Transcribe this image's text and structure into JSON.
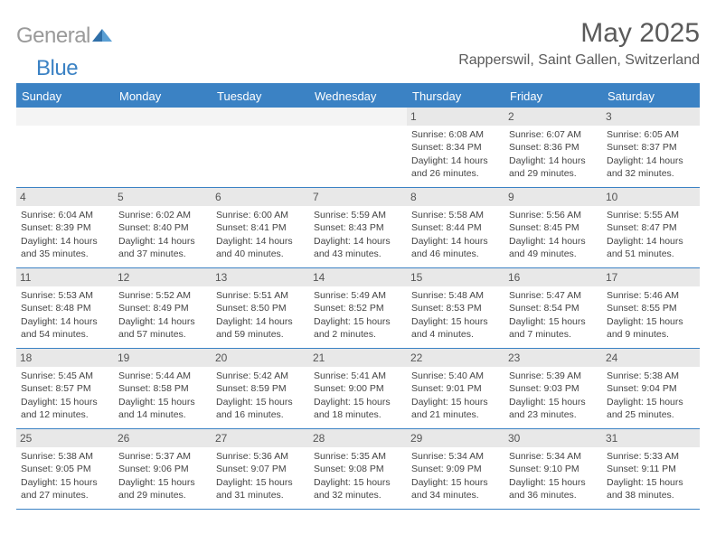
{
  "logo": {
    "text1": "General",
    "text2": "Blue"
  },
  "title": "May 2025",
  "location": "Rapperswil, Saint Gallen, Switzerland",
  "weekdays": [
    "Sunday",
    "Monday",
    "Tuesday",
    "Wednesday",
    "Thursday",
    "Friday",
    "Saturday"
  ],
  "colors": {
    "accent": "#3b82c4",
    "weekday_bg": "#3b82c4",
    "weekday_text": "#ffffff",
    "daynum_bg": "#e8e8e8",
    "blank_bg": "#f4f4f4",
    "text": "#444444",
    "title_text": "#5a5a5a",
    "logo_gray": "#9a9a9a"
  },
  "weeks": [
    [
      {
        "blank": true
      },
      {
        "blank": true
      },
      {
        "blank": true
      },
      {
        "blank": true
      },
      {
        "n": "1",
        "sunrise": "6:08 AM",
        "sunset": "8:34 PM",
        "daylight": "14 hours and 26 minutes."
      },
      {
        "n": "2",
        "sunrise": "6:07 AM",
        "sunset": "8:36 PM",
        "daylight": "14 hours and 29 minutes."
      },
      {
        "n": "3",
        "sunrise": "6:05 AM",
        "sunset": "8:37 PM",
        "daylight": "14 hours and 32 minutes."
      }
    ],
    [
      {
        "n": "4",
        "sunrise": "6:04 AM",
        "sunset": "8:39 PM",
        "daylight": "14 hours and 35 minutes."
      },
      {
        "n": "5",
        "sunrise": "6:02 AM",
        "sunset": "8:40 PM",
        "daylight": "14 hours and 37 minutes."
      },
      {
        "n": "6",
        "sunrise": "6:00 AM",
        "sunset": "8:41 PM",
        "daylight": "14 hours and 40 minutes."
      },
      {
        "n": "7",
        "sunrise": "5:59 AM",
        "sunset": "8:43 PM",
        "daylight": "14 hours and 43 minutes."
      },
      {
        "n": "8",
        "sunrise": "5:58 AM",
        "sunset": "8:44 PM",
        "daylight": "14 hours and 46 minutes."
      },
      {
        "n": "9",
        "sunrise": "5:56 AM",
        "sunset": "8:45 PM",
        "daylight": "14 hours and 49 minutes."
      },
      {
        "n": "10",
        "sunrise": "5:55 AM",
        "sunset": "8:47 PM",
        "daylight": "14 hours and 51 minutes."
      }
    ],
    [
      {
        "n": "11",
        "sunrise": "5:53 AM",
        "sunset": "8:48 PM",
        "daylight": "14 hours and 54 minutes."
      },
      {
        "n": "12",
        "sunrise": "5:52 AM",
        "sunset": "8:49 PM",
        "daylight": "14 hours and 57 minutes."
      },
      {
        "n": "13",
        "sunrise": "5:51 AM",
        "sunset": "8:50 PM",
        "daylight": "14 hours and 59 minutes."
      },
      {
        "n": "14",
        "sunrise": "5:49 AM",
        "sunset": "8:52 PM",
        "daylight": "15 hours and 2 minutes."
      },
      {
        "n": "15",
        "sunrise": "5:48 AM",
        "sunset": "8:53 PM",
        "daylight": "15 hours and 4 minutes."
      },
      {
        "n": "16",
        "sunrise": "5:47 AM",
        "sunset": "8:54 PM",
        "daylight": "15 hours and 7 minutes."
      },
      {
        "n": "17",
        "sunrise": "5:46 AM",
        "sunset": "8:55 PM",
        "daylight": "15 hours and 9 minutes."
      }
    ],
    [
      {
        "n": "18",
        "sunrise": "5:45 AM",
        "sunset": "8:57 PM",
        "daylight": "15 hours and 12 minutes."
      },
      {
        "n": "19",
        "sunrise": "5:44 AM",
        "sunset": "8:58 PM",
        "daylight": "15 hours and 14 minutes."
      },
      {
        "n": "20",
        "sunrise": "5:42 AM",
        "sunset": "8:59 PM",
        "daylight": "15 hours and 16 minutes."
      },
      {
        "n": "21",
        "sunrise": "5:41 AM",
        "sunset": "9:00 PM",
        "daylight": "15 hours and 18 minutes."
      },
      {
        "n": "22",
        "sunrise": "5:40 AM",
        "sunset": "9:01 PM",
        "daylight": "15 hours and 21 minutes."
      },
      {
        "n": "23",
        "sunrise": "5:39 AM",
        "sunset": "9:03 PM",
        "daylight": "15 hours and 23 minutes."
      },
      {
        "n": "24",
        "sunrise": "5:38 AM",
        "sunset": "9:04 PM",
        "daylight": "15 hours and 25 minutes."
      }
    ],
    [
      {
        "n": "25",
        "sunrise": "5:38 AM",
        "sunset": "9:05 PM",
        "daylight": "15 hours and 27 minutes."
      },
      {
        "n": "26",
        "sunrise": "5:37 AM",
        "sunset": "9:06 PM",
        "daylight": "15 hours and 29 minutes."
      },
      {
        "n": "27",
        "sunrise": "5:36 AM",
        "sunset": "9:07 PM",
        "daylight": "15 hours and 31 minutes."
      },
      {
        "n": "28",
        "sunrise": "5:35 AM",
        "sunset": "9:08 PM",
        "daylight": "15 hours and 32 minutes."
      },
      {
        "n": "29",
        "sunrise": "5:34 AM",
        "sunset": "9:09 PM",
        "daylight": "15 hours and 34 minutes."
      },
      {
        "n": "30",
        "sunrise": "5:34 AM",
        "sunset": "9:10 PM",
        "daylight": "15 hours and 36 minutes."
      },
      {
        "n": "31",
        "sunrise": "5:33 AM",
        "sunset": "9:11 PM",
        "daylight": "15 hours and 38 minutes."
      }
    ]
  ],
  "labels": {
    "sunrise": "Sunrise:",
    "sunset": "Sunset:",
    "daylight": "Daylight:"
  }
}
